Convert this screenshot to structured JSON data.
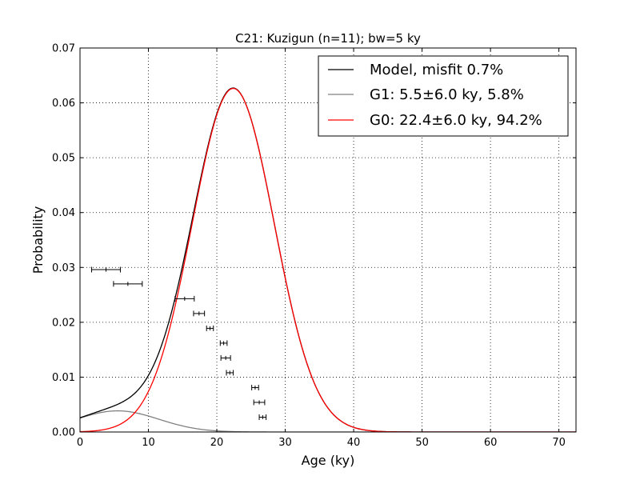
{
  "chart_data": {
    "type": "line",
    "title": "C21: Kuzigun (n=11); bw=5 ky",
    "xlabel": "Age (ky)",
    "ylabel": "Probability",
    "xlim": [
      0,
      72.5
    ],
    "ylim": [
      0,
      0.07
    ],
    "xticks": [
      0,
      10,
      20,
      30,
      40,
      50,
      60,
      70
    ],
    "xtick_labels": [
      "0",
      "10",
      "20",
      "30",
      "40",
      "50",
      "60",
      "70"
    ],
    "yticks": [
      0.0,
      0.01,
      0.02,
      0.03,
      0.04,
      0.05,
      0.06,
      0.07
    ],
    "ytick_labels": [
      "0.00",
      "0.01",
      "0.02",
      "0.03",
      "0.04",
      "0.05",
      "0.06",
      "0.07"
    ],
    "grid": true,
    "legend_position": "top-right",
    "series": [
      {
        "name": "Model, misfit 0.7%",
        "color": "#000000",
        "kind": "model-sum"
      },
      {
        "name": "G1: 5.5±6.0 ky, 5.8%",
        "color": "#808080",
        "kind": "gaussian",
        "mean": 5.5,
        "sigma": 6.0,
        "weight": 0.058
      },
      {
        "name": "G0: 22.4±6.0 ky, 94.2%",
        "color": "#ff0000",
        "kind": "gaussian",
        "mean": 22.4,
        "sigma": 6.0,
        "weight": 0.942
      }
    ],
    "age_errorbars": [
      {
        "age": 3.8,
        "err": 2.1,
        "y": 0.0296
      },
      {
        "age": 7.0,
        "err": 2.1,
        "y": 0.027
      },
      {
        "age": 15.3,
        "err": 1.4,
        "y": 0.0243
      },
      {
        "age": 17.4,
        "err": 0.8,
        "y": 0.0216
      },
      {
        "age": 19.0,
        "err": 0.5,
        "y": 0.0189
      },
      {
        "age": 21.0,
        "err": 0.5,
        "y": 0.0162
      },
      {
        "age": 21.3,
        "err": 0.7,
        "y": 0.0135
      },
      {
        "age": 21.9,
        "err": 0.5,
        "y": 0.0108
      },
      {
        "age": 25.6,
        "err": 0.5,
        "y": 0.0081
      },
      {
        "age": 26.2,
        "err": 0.8,
        "y": 0.0054
      },
      {
        "age": 26.7,
        "err": 0.5,
        "y": 0.0027
      }
    ]
  }
}
